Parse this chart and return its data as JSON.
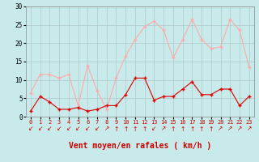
{
  "hours": [
    0,
    1,
    2,
    3,
    4,
    5,
    6,
    7,
    8,
    9,
    10,
    11,
    12,
    13,
    14,
    15,
    16,
    17,
    18,
    19,
    20,
    21,
    22,
    23
  ],
  "wind_avg": [
    1.5,
    5.5,
    4.0,
    2.0,
    2.0,
    2.5,
    1.5,
    2.0,
    3.0,
    3.0,
    6.0,
    10.5,
    10.5,
    4.5,
    5.5,
    5.5,
    7.5,
    9.5,
    6.0,
    6.0,
    7.5,
    7.5,
    3.0,
    5.5
  ],
  "wind_gust": [
    6.5,
    11.5,
    11.5,
    10.5,
    11.5,
    3.0,
    14.0,
    7.0,
    2.0,
    10.5,
    16.5,
    21.0,
    24.5,
    26.0,
    23.5,
    16.0,
    21.0,
    26.5,
    21.0,
    18.5,
    19.0,
    26.5,
    23.5,
    13.5
  ],
  "color_avg": "#dd0000",
  "color_gust": "#ffaaaa",
  "bg_color": "#c8eaea",
  "grid_color": "#b0c8c8",
  "ylim": [
    0,
    30
  ],
  "xlim_min": -0.5,
  "xlim_max": 23.5,
  "yticks": [
    0,
    5,
    10,
    15,
    20,
    25,
    30
  ],
  "xlabel": "Vent moyen/en rafales ( km/h )",
  "tick_color": "#cc0000",
  "xlabel_color": "#cc0000",
  "arrow_symbols": [
    "↙",
    "↙",
    "↙",
    "↙",
    "↙",
    "↙",
    "↙",
    "↙",
    "↗",
    "↑",
    "↑",
    "↑",
    "↑",
    "↙",
    "↗",
    "↑",
    "↑",
    "↑",
    "↑",
    "↑",
    "↗",
    "↗",
    "↗",
    "↗"
  ]
}
